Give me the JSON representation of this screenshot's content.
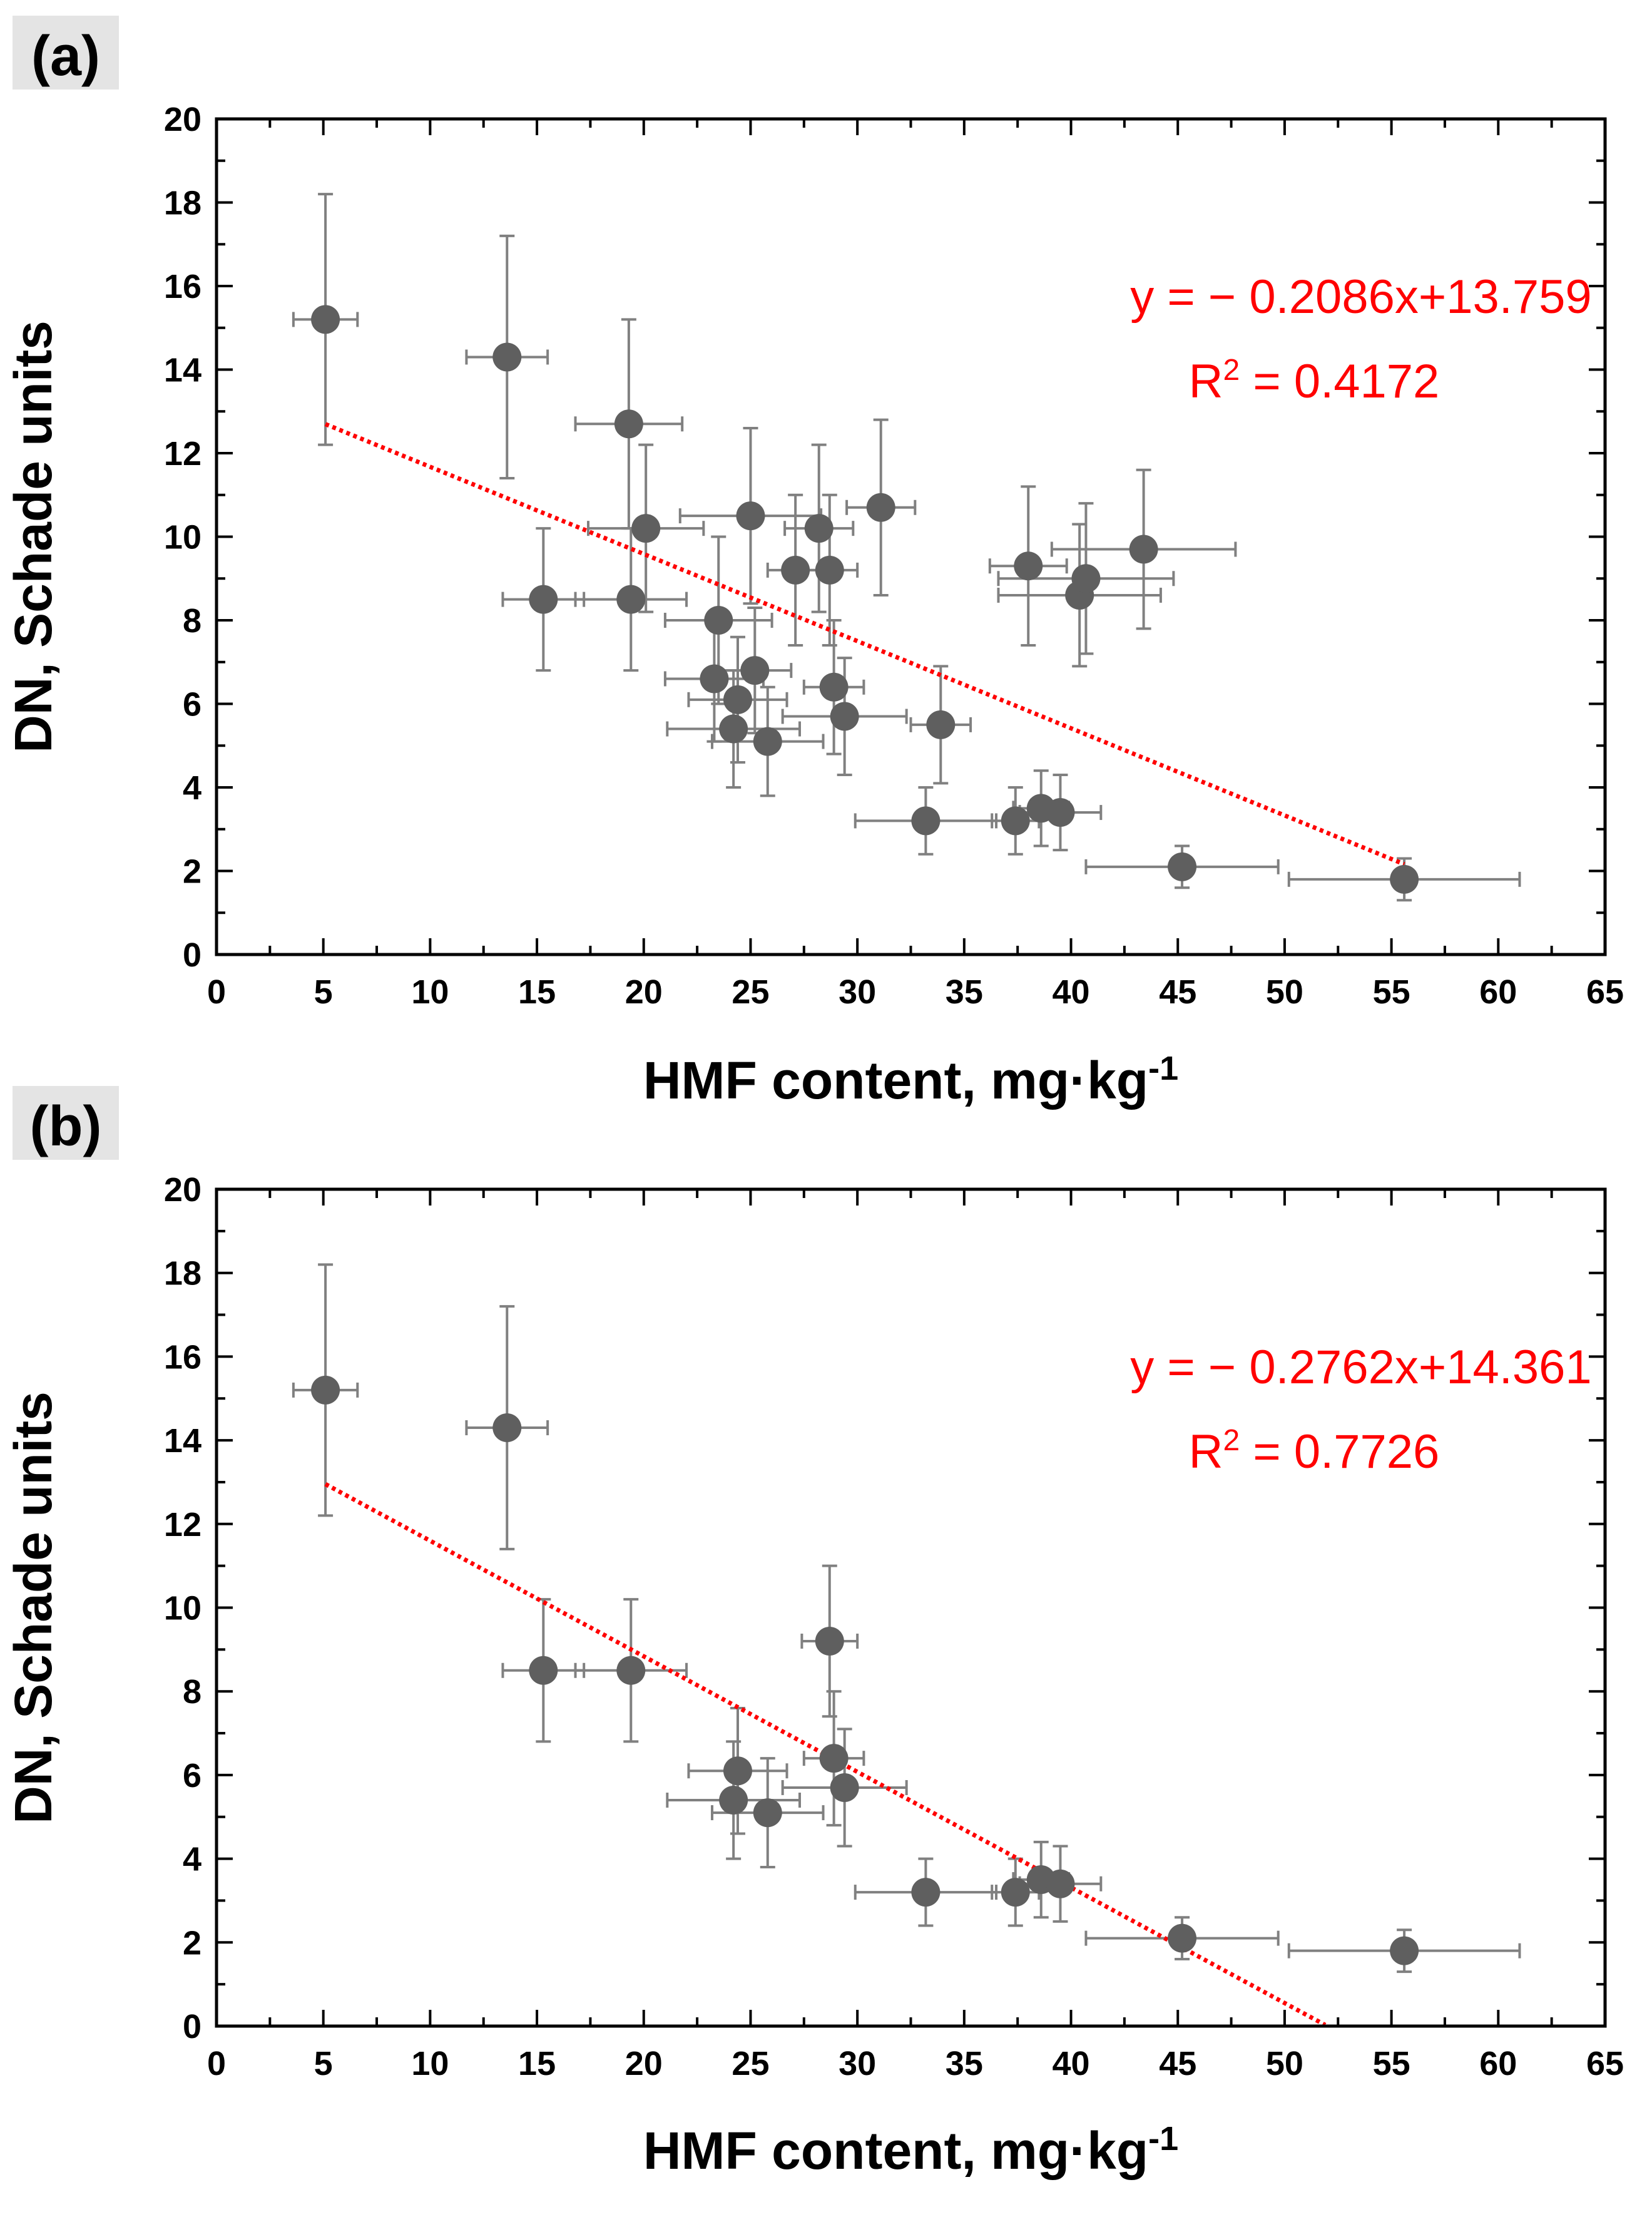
{
  "colors": {
    "marker": "#5f5f5f",
    "errorbar": "#808080",
    "trend": "#ff0000",
    "panel_label_bg": "#e4e4e4"
  },
  "chart_data": [
    {
      "type": "scatter",
      "panel_label": "(a)",
      "xlabel": "HMF content, mg·kg",
      "xlabel_sup": "-1",
      "ylabel": "DN, Schade units",
      "xlim": [
        0,
        65
      ],
      "ylim": [
        0,
        20
      ],
      "xticks": [
        "0",
        "5",
        "10",
        "15",
        "20",
        "25",
        "30",
        "35",
        "40",
        "45",
        "50",
        "55",
        "60",
        "65"
      ],
      "yticks": [
        "0",
        "2",
        "4",
        "6",
        "8",
        "10",
        "12",
        "14",
        "16",
        "18",
        "20"
      ],
      "grid": false,
      "equation": "y = − 0.2086x+13.759",
      "r2_prefix": "R",
      "r2_sup": "2",
      "r2_value": " = 0.4172",
      "trendline": {
        "slope": -0.2086,
        "intercept": 13.759,
        "x_range": [
          5.1,
          55.6
        ]
      },
      "points": [
        {
          "x": 5.1,
          "y": 15.2,
          "xerr": 1.5,
          "yerr": 3.0
        },
        {
          "x": 13.6,
          "y": 14.3,
          "xerr": 1.9,
          "yerr": 2.9
        },
        {
          "x": 19.3,
          "y": 12.7,
          "xerr": 2.5,
          "yerr": 2.5
        },
        {
          "x": 20.1,
          "y": 10.2,
          "xerr": 2.7,
          "yerr": 2.0
        },
        {
          "x": 15.3,
          "y": 8.5,
          "xerr": 1.9,
          "yerr": 1.7
        },
        {
          "x": 19.4,
          "y": 8.5,
          "xerr": 2.6,
          "yerr": 1.7
        },
        {
          "x": 23.5,
          "y": 8.0,
          "xerr": 2.5,
          "yerr": 2.0
        },
        {
          "x": 25.0,
          "y": 10.5,
          "xerr": 3.3,
          "yerr": 2.1
        },
        {
          "x": 27.1,
          "y": 9.2,
          "xerr": 1.3,
          "yerr": 1.8
        },
        {
          "x": 28.2,
          "y": 10.2,
          "xerr": 1.6,
          "yerr": 2.0
        },
        {
          "x": 28.7,
          "y": 9.2,
          "xerr": 1.3,
          "yerr": 1.8
        },
        {
          "x": 31.1,
          "y": 10.7,
          "xerr": 1.6,
          "yerr": 2.1
        },
        {
          "x": 23.3,
          "y": 6.6,
          "xerr": 2.3,
          "yerr": 1.5
        },
        {
          "x": 25.2,
          "y": 6.8,
          "xerr": 1.7,
          "yerr": 1.5
        },
        {
          "x": 24.4,
          "y": 6.1,
          "xerr": 2.3,
          "yerr": 1.5
        },
        {
          "x": 24.2,
          "y": 5.4,
          "xerr": 3.1,
          "yerr": 1.4
        },
        {
          "x": 25.8,
          "y": 5.1,
          "xerr": 2.6,
          "yerr": 1.3
        },
        {
          "x": 28.9,
          "y": 6.4,
          "xerr": 1.4,
          "yerr": 1.6
        },
        {
          "x": 29.4,
          "y": 5.7,
          "xerr": 2.9,
          "yerr": 1.4
        },
        {
          "x": 33.9,
          "y": 5.5,
          "xerr": 1.4,
          "yerr": 1.4
        },
        {
          "x": 33.2,
          "y": 3.2,
          "xerr": 3.3,
          "yerr": 0.8
        },
        {
          "x": 37.4,
          "y": 3.2,
          "xerr": 1.1,
          "yerr": 0.8
        },
        {
          "x": 38.6,
          "y": 3.5,
          "xerr": 1.3,
          "yerr": 0.9
        },
        {
          "x": 39.5,
          "y": 3.4,
          "xerr": 1.9,
          "yerr": 0.9
        },
        {
          "x": 38.0,
          "y": 9.3,
          "xerr": 1.8,
          "yerr": 1.9
        },
        {
          "x": 40.4,
          "y": 8.6,
          "xerr": 3.8,
          "yerr": 1.7
        },
        {
          "x": 40.7,
          "y": 9.0,
          "xerr": 4.1,
          "yerr": 1.8
        },
        {
          "x": 43.4,
          "y": 9.7,
          "xerr": 4.3,
          "yerr": 1.9
        },
        {
          "x": 45.2,
          "y": 2.1,
          "xerr": 4.5,
          "yerr": 0.5
        },
        {
          "x": 55.6,
          "y": 1.8,
          "xerr": 5.4,
          "yerr": 0.5
        }
      ]
    },
    {
      "type": "scatter",
      "panel_label": "(b)",
      "xlabel": "HMF content, mg·kg",
      "xlabel_sup": "-1",
      "ylabel": "DN, Schade units",
      "xlim": [
        0,
        65
      ],
      "ylim": [
        0,
        20
      ],
      "xticks": [
        "0",
        "5",
        "10",
        "15",
        "20",
        "25",
        "30",
        "35",
        "40",
        "45",
        "50",
        "55",
        "60",
        "65"
      ],
      "yticks": [
        "0",
        "2",
        "4",
        "6",
        "8",
        "10",
        "12",
        "14",
        "16",
        "18",
        "20"
      ],
      "grid": false,
      "equation": "y = − 0.2762x+14.361",
      "r2_prefix": "R",
      "r2_sup": "2",
      "r2_value": " = 0.7726",
      "trendline": {
        "slope": -0.2762,
        "intercept": 14.361,
        "x_range": [
          5.1,
          51.9
        ]
      },
      "points": [
        {
          "x": 5.1,
          "y": 15.2,
          "xerr": 1.5,
          "yerr": 3.0
        },
        {
          "x": 13.6,
          "y": 14.3,
          "xerr": 1.9,
          "yerr": 2.9
        },
        {
          "x": 15.3,
          "y": 8.5,
          "xerr": 1.9,
          "yerr": 1.7
        },
        {
          "x": 19.4,
          "y": 8.5,
          "xerr": 2.6,
          "yerr": 1.7
        },
        {
          "x": 28.7,
          "y": 9.2,
          "xerr": 1.3,
          "yerr": 1.8
        },
        {
          "x": 24.4,
          "y": 6.1,
          "xerr": 2.3,
          "yerr": 1.5
        },
        {
          "x": 24.2,
          "y": 5.4,
          "xerr": 3.1,
          "yerr": 1.4
        },
        {
          "x": 25.8,
          "y": 5.1,
          "xerr": 2.6,
          "yerr": 1.3
        },
        {
          "x": 28.9,
          "y": 6.4,
          "xerr": 1.4,
          "yerr": 1.6
        },
        {
          "x": 29.4,
          "y": 5.7,
          "xerr": 2.9,
          "yerr": 1.4
        },
        {
          "x": 33.2,
          "y": 3.2,
          "xerr": 3.3,
          "yerr": 0.8
        },
        {
          "x": 37.4,
          "y": 3.2,
          "xerr": 1.1,
          "yerr": 0.8
        },
        {
          "x": 38.6,
          "y": 3.5,
          "xerr": 1.3,
          "yerr": 0.9
        },
        {
          "x": 39.5,
          "y": 3.4,
          "xerr": 1.9,
          "yerr": 0.9
        },
        {
          "x": 45.2,
          "y": 2.1,
          "xerr": 4.5,
          "yerr": 0.5
        },
        {
          "x": 55.6,
          "y": 1.8,
          "xerr": 5.4,
          "yerr": 0.5
        }
      ]
    }
  ]
}
